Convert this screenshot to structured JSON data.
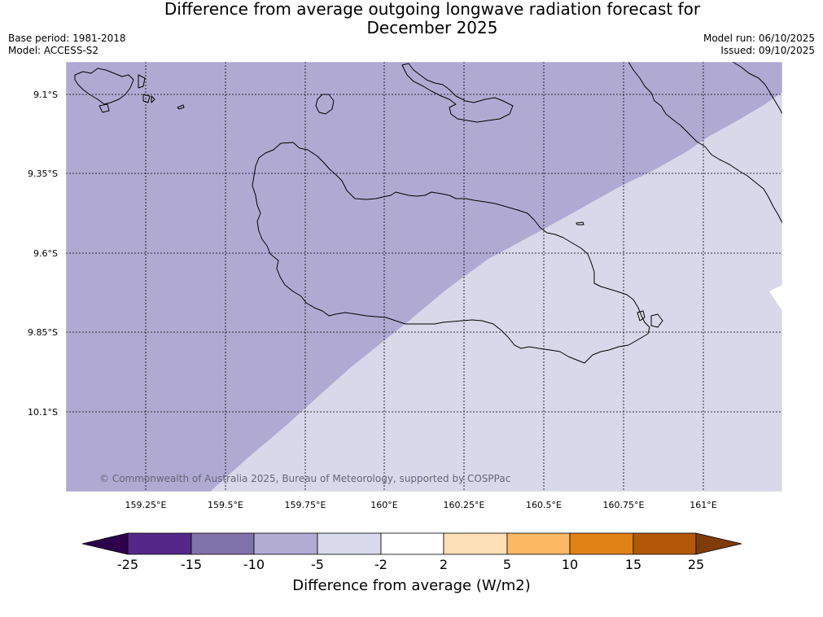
{
  "title": {
    "line1": "Difference from average outgoing longwave radiation forecast for",
    "line2": "December 2025"
  },
  "info_left": {
    "base_period": "Base period: 1981-2018",
    "model": "Model: ACCESS-S2"
  },
  "info_right": {
    "model_run": "Model run: 06/10/2025",
    "issued": "Issued: 09/10/2025"
  },
  "map": {
    "lat_labels": [
      "9.1°S",
      "9.35°S",
      "9.6°S",
      "9.85°S",
      "10.1°S"
    ],
    "lon_labels": [
      "159.25°E",
      "159.5°E",
      "159.75°E",
      "160°E",
      "160.25°E",
      "160.5°E",
      "160.75°E",
      "161°E"
    ],
    "copyright": "© Commonwealth of Australia 2025, Bureau of Meteorology, supported by COSPPac",
    "region_colors": {
      "minus10_to_minus5": "#b0aad3",
      "minus5_to_minus2": "#d8d8ea"
    }
  },
  "colorbar": {
    "title": "Difference from average (W/m2)",
    "tick_labels": [
      "-25",
      "-15",
      "-10",
      "-5",
      "-2",
      "2",
      "5",
      "10",
      "15",
      "25"
    ],
    "colors": [
      "#2d004b",
      "#542788",
      "#8073ac",
      "#b2abd2",
      "#d8daeb",
      "#ffffff",
      "#fee0b6",
      "#fdb863",
      "#e08214",
      "#b35806",
      "#7f3b08"
    ]
  }
}
